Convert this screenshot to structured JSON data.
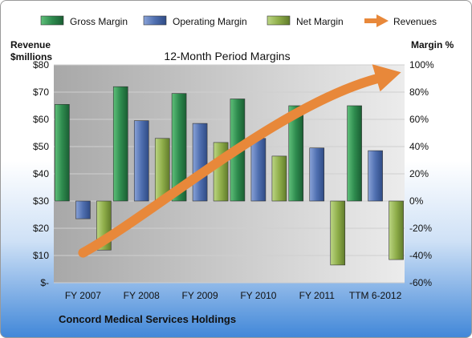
{
  "chart_data": {
    "type": "bar",
    "title": "12-Month Period Margins",
    "subtitle": "Concord Medical Services Holdings",
    "categories": [
      "FY 2007",
      "FY 2008",
      "FY 2009",
      "FY 2010",
      "FY 2011",
      "TTM 6-2012"
    ],
    "y_left": {
      "label_line1": "Revenue",
      "label_line2": "$millions",
      "ticks": [
        "$-",
        "$10",
        "$20",
        "$30",
        "$40",
        "$50",
        "$60",
        "$70",
        "$80"
      ],
      "range": [
        0,
        80
      ]
    },
    "y_right": {
      "label": "Margin %",
      "ticks": [
        "-60%",
        "-40%",
        "-20%",
        "0%",
        "20%",
        "40%",
        "60%",
        "80%",
        "100%"
      ],
      "range": [
        -60,
        100
      ]
    },
    "series": [
      {
        "name": "Gross Margin",
        "axis": "right",
        "type": "bar",
        "color": "#2e8b4e",
        "values": [
          71,
          84,
          79,
          75,
          70,
          70
        ]
      },
      {
        "name": "Operating Margin",
        "axis": "right",
        "type": "bar",
        "color": "#4f6fb0",
        "values": [
          -13,
          59,
          57,
          46,
          39,
          37
        ]
      },
      {
        "name": "Net Margin",
        "axis": "right",
        "type": "bar",
        "color": "#8fae4a",
        "values": [
          -36,
          46,
          43,
          33,
          -47,
          -43
        ]
      },
      {
        "name": "Revenues",
        "axis": "left",
        "type": "arrow",
        "color": "#e8883a",
        "values": [
          11,
          26,
          40,
          55,
          67,
          77
        ]
      }
    ],
    "grid": true,
    "legend_position": "top"
  }
}
